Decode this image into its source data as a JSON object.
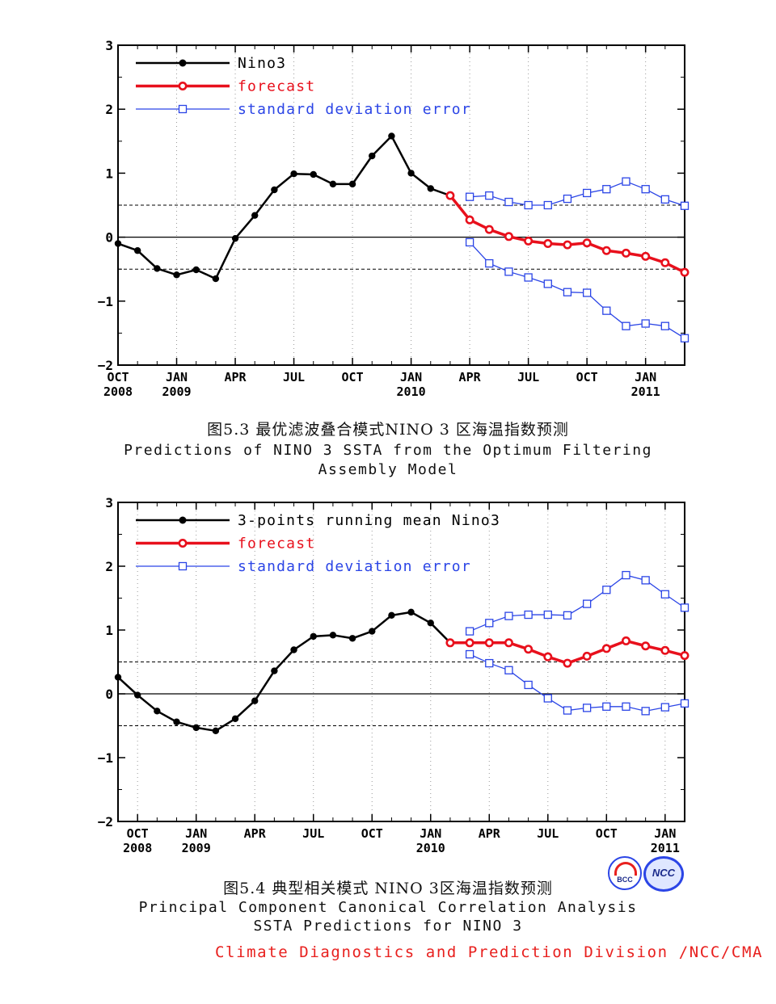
{
  "chart_data": [
    {
      "type": "line",
      "title": "图5.3 最优滤波叠合模式NINO 3 区海温指数预测",
      "subtitle_lines": [
        "Predictions of NINO 3 SSTA from the Optimum Filtering",
        "Assembly Model"
      ],
      "ylim": [
        -2,
        3
      ],
      "yticks": [
        3,
        2,
        1,
        0,
        -1,
        -2
      ],
      "ytick_labels": [
        "3",
        "2",
        "1",
        "0",
        "−1",
        "−2"
      ],
      "xlim": [
        0,
        29
      ],
      "x_tick_labels": [
        {
          "x": 0,
          "month": "OCT",
          "year": "2008"
        },
        {
          "x": 3,
          "month": "JAN",
          "year": "2009"
        },
        {
          "x": 6,
          "month": "APR",
          "year": ""
        },
        {
          "x": 9,
          "month": "JUL",
          "year": ""
        },
        {
          "x": 12,
          "month": "OCT",
          "year": ""
        },
        {
          "x": 15,
          "month": "JAN",
          "year": "2010"
        },
        {
          "x": 18,
          "month": "APR",
          "year": ""
        },
        {
          "x": 21,
          "month": "JUL",
          "year": ""
        },
        {
          "x": 24,
          "month": "OCT",
          "year": ""
        },
        {
          "x": 27,
          "month": "JAN",
          "year": "2011"
        }
      ],
      "reference_lines": [
        0.5,
        -0.5
      ],
      "zero_line": 0,
      "grid": "dotted vertical",
      "legend_position": "top-left",
      "series": [
        {
          "name": "Nino3",
          "color": "#000000",
          "style": "observed",
          "x": [
            0,
            1,
            2,
            3,
            4,
            5,
            6,
            7,
            8,
            9,
            10,
            11,
            12,
            13,
            14,
            15,
            16,
            17
          ],
          "values": [
            -0.1,
            -0.21,
            -0.49,
            -0.59,
            -0.51,
            -0.65,
            -0.02,
            0.34,
            0.74,
            0.99,
            0.98,
            0.83,
            0.83,
            1.27,
            1.58,
            1.0,
            0.76,
            0.65
          ]
        },
        {
          "name": "forecast",
          "color": "#e8101c",
          "style": "forecast",
          "x": [
            17,
            18,
            19,
            20,
            21,
            22,
            23,
            24,
            25,
            26,
            27,
            28,
            29
          ],
          "values": [
            0.65,
            0.27,
            0.12,
            0.01,
            -0.06,
            -0.1,
            -0.12,
            -0.09,
            -0.21,
            -0.25,
            -0.3,
            -0.4,
            -0.55
          ]
        },
        {
          "name": "standard deviation error",
          "color": "#2b45e6",
          "style": "error",
          "bands": [
            {
              "x": [
                18,
                19,
                20,
                21,
                22,
                23,
                24,
                25,
                26,
                27,
                28,
                29
              ],
              "values": [
                0.63,
                0.65,
                0.55,
                0.5,
                0.5,
                0.6,
                0.69,
                0.75,
                0.87,
                0.75,
                0.59,
                0.49
              ]
            },
            {
              "x": [
                18,
                19,
                20,
                21,
                22,
                23,
                24,
                25,
                26,
                27,
                28,
                29
              ],
              "values": [
                -0.08,
                -0.41,
                -0.54,
                -0.63,
                -0.73,
                -0.86,
                -0.87,
                -1.15,
                -1.39,
                -1.35,
                -1.39,
                -1.58
              ]
            }
          ]
        }
      ]
    },
    {
      "type": "line",
      "title": "图5.4 典型相关模式 NINO 3区海温指数预测",
      "subtitle_lines": [
        "Principal Component Canonical Correlation Analysis",
        "SSTA Predictions for NINO 3"
      ],
      "ylim": [
        -2,
        3
      ],
      "yticks": [
        3,
        2,
        1,
        0,
        -1,
        -2
      ],
      "ytick_labels": [
        "3",
        "2",
        "1",
        "0",
        "−1",
        "−2"
      ],
      "xlim": [
        -1,
        28
      ],
      "x_tick_labels": [
        {
          "x": 0,
          "month": "OCT",
          "year": "2008"
        },
        {
          "x": 3,
          "month": "JAN",
          "year": "2009"
        },
        {
          "x": 6,
          "month": "APR",
          "year": ""
        },
        {
          "x": 9,
          "month": "JUL",
          "year": ""
        },
        {
          "x": 12,
          "month": "OCT",
          "year": ""
        },
        {
          "x": 15,
          "month": "JAN",
          "year": "2010"
        },
        {
          "x": 18,
          "month": "APR",
          "year": ""
        },
        {
          "x": 21,
          "month": "JUL",
          "year": ""
        },
        {
          "x": 24,
          "month": "OCT",
          "year": ""
        },
        {
          "x": 27,
          "month": "JAN",
          "year": "2011"
        }
      ],
      "reference_lines": [
        0.5,
        -0.5
      ],
      "zero_line": 0,
      "grid": "dotted vertical",
      "legend_position": "top-left",
      "series": [
        {
          "name": "3-points running mean Nino3",
          "color": "#000000",
          "style": "observed",
          "x": [
            -1,
            0,
            1,
            2,
            3,
            4,
            5,
            6,
            7,
            8,
            9,
            10,
            11,
            12,
            13,
            14,
            15,
            16
          ],
          "values": [
            0.26,
            -0.02,
            -0.27,
            -0.44,
            -0.53,
            -0.58,
            -0.39,
            -0.11,
            0.36,
            0.69,
            0.9,
            0.92,
            0.87,
            0.98,
            1.23,
            1.28,
            1.11,
            0.8
          ]
        },
        {
          "name": "forecast",
          "color": "#e8101c",
          "style": "forecast",
          "x": [
            16,
            17,
            18,
            19,
            20,
            21,
            22,
            23,
            24,
            25,
            26,
            27,
            28
          ],
          "values": [
            0.8,
            0.8,
            0.8,
            0.8,
            0.7,
            0.58,
            0.48,
            0.59,
            0.71,
            0.83,
            0.75,
            0.68,
            0.6
          ]
        },
        {
          "name": "standard deviation error",
          "color": "#2b45e6",
          "style": "error",
          "bands": [
            {
              "x": [
                17,
                18,
                19,
                20,
                21,
                22,
                23,
                24,
                25,
                26,
                27,
                28
              ],
              "values": [
                0.98,
                1.11,
                1.22,
                1.24,
                1.24,
                1.23,
                1.41,
                1.63,
                1.86,
                1.78,
                1.56,
                1.35
              ]
            },
            {
              "x": [
                17,
                18,
                19,
                20,
                21,
                22,
                23,
                24,
                25,
                26,
                27,
                28
              ],
              "values": [
                0.62,
                0.48,
                0.37,
                0.14,
                -0.07,
                -0.26,
                -0.22,
                -0.2,
                -0.2,
                -0.27,
                -0.21,
                -0.15
              ]
            }
          ]
        }
      ]
    }
  ],
  "footer": {
    "text": "Climate Diagnostics and Prediction Division /NCC/CMA"
  },
  "logos": {
    "left_text": "BCC",
    "right_text": "NCC"
  }
}
